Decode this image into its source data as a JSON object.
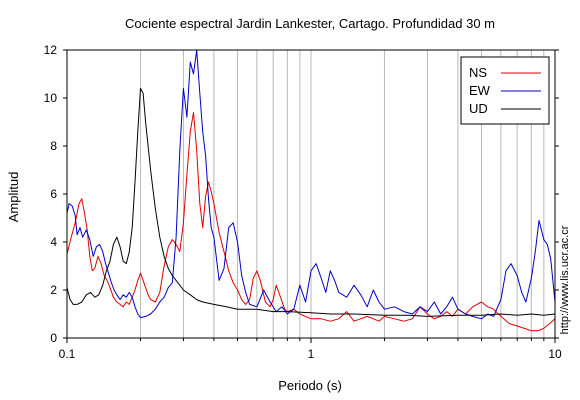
{
  "chart_data": {
    "type": "line",
    "title": "Cociente espectral Jardin Lankester, Cartago. Profundidad 30 m",
    "xlabel": "Periodo (s)",
    "ylabel": "Amplitud",
    "xscale": "log",
    "xlim": [
      0.1,
      10
    ],
    "ylim": [
      0,
      12
    ],
    "x_tick_labels": [
      "0.1",
      "1",
      "10"
    ],
    "x_tick_values": [
      0.1,
      1,
      10
    ],
    "y_tick_labels": [
      "0",
      "2",
      "4",
      "6",
      "8",
      "10",
      "12"
    ],
    "y_tick_values": [
      0,
      2,
      4,
      6,
      8,
      10,
      12
    ],
    "grid": "vertical-minor",
    "legend_position": "top-right",
    "credit": "http://www.lis.ucr.ac.cr",
    "series": [
      {
        "name": "NS",
        "color": "#e00000",
        "points": [
          [
            0.1,
            3.5
          ],
          [
            0.104,
            4.2
          ],
          [
            0.108,
            4.8
          ],
          [
            0.112,
            5.6
          ],
          [
            0.115,
            5.8
          ],
          [
            0.118,
            5.2
          ],
          [
            0.121,
            4.5
          ],
          [
            0.124,
            3.4
          ],
          [
            0.127,
            2.8
          ],
          [
            0.13,
            2.9
          ],
          [
            0.134,
            3.4
          ],
          [
            0.138,
            3.1
          ],
          [
            0.142,
            2.6
          ],
          [
            0.146,
            2.4
          ],
          [
            0.15,
            2.1
          ],
          [
            0.155,
            1.7
          ],
          [
            0.16,
            1.5
          ],
          [
            0.165,
            1.4
          ],
          [
            0.17,
            1.3
          ],
          [
            0.175,
            1.5
          ],
          [
            0.18,
            1.4
          ],
          [
            0.185,
            1.7
          ],
          [
            0.19,
            2.0
          ],
          [
            0.195,
            2.4
          ],
          [
            0.2,
            2.7
          ],
          [
            0.205,
            2.4
          ],
          [
            0.21,
            2.1
          ],
          [
            0.215,
            1.8
          ],
          [
            0.22,
            1.6
          ],
          [
            0.23,
            1.5
          ],
          [
            0.24,
            1.9
          ],
          [
            0.25,
            3.0
          ],
          [
            0.26,
            3.8
          ],
          [
            0.27,
            4.1
          ],
          [
            0.28,
            3.9
          ],
          [
            0.29,
            3.6
          ],
          [
            0.3,
            4.8
          ],
          [
            0.31,
            6.8
          ],
          [
            0.32,
            8.6
          ],
          [
            0.33,
            9.4
          ],
          [
            0.34,
            7.8
          ],
          [
            0.35,
            5.6
          ],
          [
            0.36,
            4.6
          ],
          [
            0.37,
            5.9
          ],
          [
            0.38,
            6.5
          ],
          [
            0.39,
            6.1
          ],
          [
            0.4,
            5.6
          ],
          [
            0.42,
            4.4
          ],
          [
            0.44,
            3.6
          ],
          [
            0.46,
            2.8
          ],
          [
            0.48,
            2.3
          ],
          [
            0.5,
            2.0
          ],
          [
            0.52,
            1.6
          ],
          [
            0.54,
            1.4
          ],
          [
            0.56,
            1.6
          ],
          [
            0.58,
            2.5
          ],
          [
            0.6,
            2.8
          ],
          [
            0.62,
            2.4
          ],
          [
            0.65,
            1.5
          ],
          [
            0.68,
            1.3
          ],
          [
            0.7,
            1.6
          ],
          [
            0.72,
            2.2
          ],
          [
            0.75,
            1.7
          ],
          [
            0.78,
            1.2
          ],
          [
            0.8,
            1.1
          ],
          [
            0.85,
            1.2
          ],
          [
            0.9,
            1.0
          ],
          [
            0.95,
            0.9
          ],
          [
            1.0,
            0.8
          ],
          [
            1.1,
            0.8
          ],
          [
            1.2,
            0.7
          ],
          [
            1.3,
            0.8
          ],
          [
            1.4,
            1.1
          ],
          [
            1.5,
            0.7
          ],
          [
            1.6,
            0.8
          ],
          [
            1.7,
            0.9
          ],
          [
            1.8,
            0.8
          ],
          [
            1.9,
            0.7
          ],
          [
            2.0,
            0.9
          ],
          [
            2.2,
            0.8
          ],
          [
            2.4,
            0.7
          ],
          [
            2.6,
            0.8
          ],
          [
            2.8,
            1.3
          ],
          [
            3.0,
            1.0
          ],
          [
            3.2,
            0.8
          ],
          [
            3.4,
            0.9
          ],
          [
            3.6,
            1.1
          ],
          [
            3.8,
            0.9
          ],
          [
            4.0,
            1.2
          ],
          [
            4.3,
            1.0
          ],
          [
            4.6,
            1.3
          ],
          [
            5.0,
            1.5
          ],
          [
            5.3,
            1.3
          ],
          [
            5.6,
            1.2
          ],
          [
            6.0,
            0.9
          ],
          [
            6.5,
            0.6
          ],
          [
            7.0,
            0.5
          ],
          [
            7.5,
            0.4
          ],
          [
            8.0,
            0.3
          ],
          [
            8.5,
            0.3
          ],
          [
            9.0,
            0.4
          ],
          [
            9.5,
            0.6
          ],
          [
            10.0,
            0.8
          ]
        ]
      },
      {
        "name": "EW",
        "color": "#0000cc",
        "points": [
          [
            0.1,
            5.2
          ],
          [
            0.102,
            5.6
          ],
          [
            0.105,
            5.5
          ],
          [
            0.108,
            5.1
          ],
          [
            0.11,
            4.3
          ],
          [
            0.113,
            4.6
          ],
          [
            0.116,
            4.2
          ],
          [
            0.12,
            4.5
          ],
          [
            0.124,
            4.1
          ],
          [
            0.128,
            3.4
          ],
          [
            0.132,
            3.8
          ],
          [
            0.136,
            3.9
          ],
          [
            0.14,
            3.6
          ],
          [
            0.144,
            3.1
          ],
          [
            0.148,
            2.7
          ],
          [
            0.152,
            2.3
          ],
          [
            0.156,
            2.0
          ],
          [
            0.16,
            1.8
          ],
          [
            0.165,
            1.6
          ],
          [
            0.17,
            1.8
          ],
          [
            0.175,
            1.7
          ],
          [
            0.18,
            1.9
          ],
          [
            0.185,
            1.7
          ],
          [
            0.19,
            1.3
          ],
          [
            0.195,
            1.0
          ],
          [
            0.2,
            0.85
          ],
          [
            0.21,
            0.9
          ],
          [
            0.22,
            1.0
          ],
          [
            0.23,
            1.2
          ],
          [
            0.24,
            1.5
          ],
          [
            0.25,
            1.7
          ],
          [
            0.26,
            2.1
          ],
          [
            0.27,
            2.3
          ],
          [
            0.28,
            4.2
          ],
          [
            0.29,
            7.8
          ],
          [
            0.3,
            10.4
          ],
          [
            0.31,
            9.2
          ],
          [
            0.32,
            11.5
          ],
          [
            0.33,
            11.0
          ],
          [
            0.34,
            12.0
          ],
          [
            0.35,
            10.2
          ],
          [
            0.36,
            8.6
          ],
          [
            0.37,
            7.6
          ],
          [
            0.38,
            5.8
          ],
          [
            0.39,
            4.6
          ],
          [
            0.4,
            4.2
          ],
          [
            0.42,
            2.4
          ],
          [
            0.44,
            2.9
          ],
          [
            0.46,
            4.6
          ],
          [
            0.48,
            4.8
          ],
          [
            0.5,
            4.0
          ],
          [
            0.52,
            2.6
          ],
          [
            0.54,
            1.9
          ],
          [
            0.56,
            1.4
          ],
          [
            0.6,
            1.3
          ],
          [
            0.64,
            2.0
          ],
          [
            0.68,
            1.5
          ],
          [
            0.72,
            1.1
          ],
          [
            0.76,
            1.3
          ],
          [
            0.8,
            1.0
          ],
          [
            0.85,
            1.2
          ],
          [
            0.9,
            2.2
          ],
          [
            0.95,
            1.5
          ],
          [
            1.0,
            2.8
          ],
          [
            1.05,
            3.1
          ],
          [
            1.1,
            2.5
          ],
          [
            1.15,
            1.9
          ],
          [
            1.2,
            2.8
          ],
          [
            1.25,
            2.4
          ],
          [
            1.3,
            1.9
          ],
          [
            1.4,
            1.7
          ],
          [
            1.5,
            2.2
          ],
          [
            1.6,
            1.8
          ],
          [
            1.7,
            1.3
          ],
          [
            1.8,
            2.0
          ],
          [
            1.9,
            1.5
          ],
          [
            2.0,
            1.2
          ],
          [
            2.2,
            1.3
          ],
          [
            2.4,
            1.1
          ],
          [
            2.6,
            1.0
          ],
          [
            2.8,
            1.3
          ],
          [
            3.0,
            1.1
          ],
          [
            3.2,
            1.5
          ],
          [
            3.4,
            1.0
          ],
          [
            3.6,
            1.3
          ],
          [
            3.8,
            1.7
          ],
          [
            4.0,
            1.2
          ],
          [
            4.3,
            1.0
          ],
          [
            4.6,
            0.9
          ],
          [
            5.0,
            0.8
          ],
          [
            5.3,
            1.0
          ],
          [
            5.6,
            0.9
          ],
          [
            6.0,
            1.6
          ],
          [
            6.3,
            2.8
          ],
          [
            6.6,
            3.1
          ],
          [
            7.0,
            2.6
          ],
          [
            7.3,
            1.9
          ],
          [
            7.6,
            1.5
          ],
          [
            8.0,
            2.5
          ],
          [
            8.3,
            3.6
          ],
          [
            8.6,
            4.9
          ],
          [
            9.0,
            4.1
          ],
          [
            9.3,
            3.9
          ],
          [
            9.6,
            3.3
          ],
          [
            10.0,
            1.5
          ]
        ]
      },
      {
        "name": "UD",
        "color": "#000000",
        "points": [
          [
            0.1,
            2.1
          ],
          [
            0.103,
            1.6
          ],
          [
            0.106,
            1.4
          ],
          [
            0.11,
            1.4
          ],
          [
            0.115,
            1.5
          ],
          [
            0.12,
            1.8
          ],
          [
            0.125,
            1.9
          ],
          [
            0.13,
            1.7
          ],
          [
            0.135,
            1.8
          ],
          [
            0.14,
            2.2
          ],
          [
            0.145,
            2.8
          ],
          [
            0.15,
            3.2
          ],
          [
            0.155,
            3.9
          ],
          [
            0.16,
            4.2
          ],
          [
            0.165,
            3.8
          ],
          [
            0.17,
            3.2
          ],
          [
            0.175,
            3.1
          ],
          [
            0.18,
            3.6
          ],
          [
            0.185,
            4.6
          ],
          [
            0.19,
            6.5
          ],
          [
            0.195,
            8.6
          ],
          [
            0.2,
            10.4
          ],
          [
            0.205,
            10.2
          ],
          [
            0.21,
            9.0
          ],
          [
            0.22,
            7.0
          ],
          [
            0.23,
            5.4
          ],
          [
            0.24,
            4.2
          ],
          [
            0.25,
            3.4
          ],
          [
            0.26,
            2.9
          ],
          [
            0.27,
            2.6
          ],
          [
            0.28,
            2.4
          ],
          [
            0.29,
            2.2
          ],
          [
            0.3,
            2.0
          ],
          [
            0.32,
            1.8
          ],
          [
            0.34,
            1.6
          ],
          [
            0.36,
            1.5
          ],
          [
            0.4,
            1.4
          ],
          [
            0.45,
            1.3
          ],
          [
            0.5,
            1.2
          ],
          [
            0.6,
            1.2
          ],
          [
            0.7,
            1.1
          ],
          [
            0.8,
            1.1
          ],
          [
            1.0,
            1.05
          ],
          [
            1.2,
            1.0
          ],
          [
            1.5,
            1.0
          ],
          [
            2.0,
            0.95
          ],
          [
            2.5,
            0.95
          ],
          [
            3.0,
            0.9
          ],
          [
            4.0,
            0.95
          ],
          [
            5.0,
            0.95
          ],
          [
            6.0,
            1.0
          ],
          [
            7.0,
            0.95
          ],
          [
            8.0,
            1.0
          ],
          [
            9.0,
            0.95
          ],
          [
            10.0,
            1.0
          ]
        ]
      }
    ]
  }
}
